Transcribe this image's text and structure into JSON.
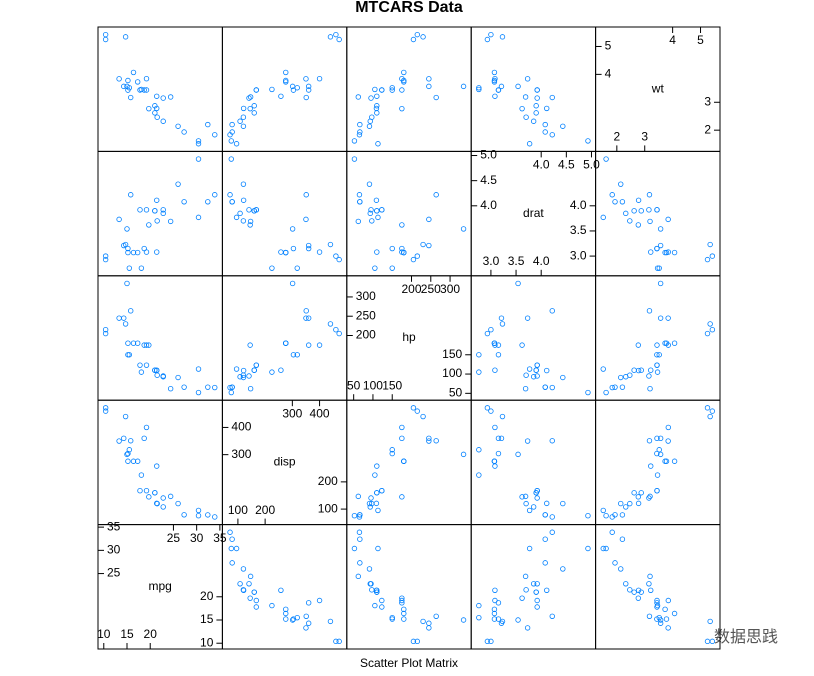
{
  "chart_data": {
    "type": "splom",
    "title": "MTCARS Data",
    "xlabel": "Scatter Plot Matrix",
    "watermark": "数据思践",
    "color": "#0080ff",
    "variables": [
      {
        "name": "mpg",
        "lim": [
          8.755,
          35.545
        ],
        "ticks_low": [
          10,
          15,
          20
        ],
        "ticks_high": [
          25,
          30,
          35
        ],
        "values": [
          21.0,
          21.0,
          22.8,
          21.4,
          18.7,
          18.1,
          14.3,
          24.4,
          22.8,
          19.2,
          17.8,
          16.4,
          17.3,
          15.2,
          10.4,
          10.4,
          14.7,
          32.4,
          30.4,
          33.9,
          21.5,
          15.5,
          15.2,
          13.3,
          19.2,
          27.3,
          26.0,
          30.4,
          15.8,
          19.7,
          15.0,
          21.4
        ]
      },
      {
        "name": "disp",
        "lim": [
          43.04,
          500.06
        ],
        "ticks_low": [
          100,
          200
        ],
        "ticks_high": [
          300,
          400
        ],
        "values": [
          160,
          160,
          108,
          258,
          360,
          225,
          360,
          146.7,
          140.8,
          167.6,
          167.6,
          275.8,
          275.8,
          275.8,
          472,
          460,
          440,
          78.7,
          75.7,
          71.1,
          120.1,
          318,
          304,
          350,
          400,
          79,
          120.3,
          95.1,
          351,
          145,
          301,
          121
        ]
      },
      {
        "name": "hp",
        "lim": [
          32.19,
          354.81
        ],
        "ticks_low": [
          50,
          100,
          150
        ],
        "ticks_high": [
          200,
          250,
          300
        ],
        "values": [
          110,
          110,
          93,
          110,
          175,
          105,
          245,
          62,
          95,
          123,
          123,
          180,
          180,
          180,
          205,
          215,
          230,
          66,
          52,
          65,
          97,
          150,
          150,
          245,
          175,
          66,
          91,
          113,
          264,
          175,
          335,
          109
        ]
      },
      {
        "name": "drat",
        "lim": [
          2.608,
          5.082
        ],
        "ticks_low": [
          {
            "value": 3,
            "label": "3.0"
          },
          3.5,
          {
            "value": 4,
            "label": "4.0"
          }
        ],
        "ticks_high": [
          {
            "value": 4,
            "label": "4.0"
          },
          4.5,
          {
            "value": 5,
            "label": "5.0"
          }
        ],
        "values": [
          3.9,
          3.9,
          3.85,
          3.08,
          3.15,
          2.76,
          3.21,
          3.69,
          3.92,
          3.92,
          3.92,
          3.07,
          3.07,
          3.07,
          2.93,
          3.0,
          3.23,
          4.08,
          4.93,
          4.22,
          3.7,
          2.76,
          3.15,
          3.73,
          3.08,
          4.08,
          4.43,
          3.77,
          4.22,
          3.62,
          3.54,
          4.11
        ]
      },
      {
        "name": "wt",
        "lim": [
          1.239,
          5.698
        ],
        "ticks_low": [
          2,
          3
        ],
        "ticks_high": [
          4,
          5
        ],
        "values": [
          2.62,
          2.875,
          2.32,
          3.215,
          3.44,
          3.46,
          3.57,
          3.19,
          3.15,
          3.44,
          3.44,
          4.07,
          3.73,
          3.78,
          5.25,
          5.424,
          5.345,
          2.2,
          1.615,
          1.835,
          2.465,
          3.52,
          3.435,
          3.84,
          3.845,
          1.935,
          2.14,
          1.513,
          3.17,
          2.77,
          3.57,
          2.78
        ]
      }
    ]
  }
}
